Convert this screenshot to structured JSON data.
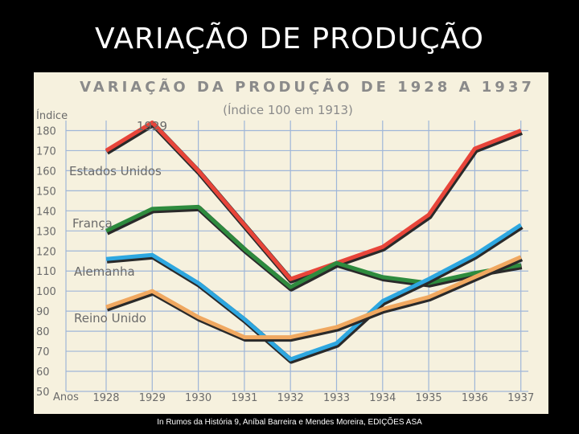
{
  "slide": {
    "title": "VARIAÇÃO DE PRODUÇÃO",
    "caption": "In Rumos da História 9, Aníbal Barreira e Mendes Moreira, EDIÇÕES ASA"
  },
  "chart_data": {
    "type": "line",
    "title": "VARIAÇÃO DA PRODUÇÃO DE 1928 A 1937",
    "subtitle": "(Índice 100 em 1913)",
    "ylabel": "Índice",
    "xlabel": "Anos",
    "ylim": [
      50,
      185
    ],
    "yticks": [
      50,
      60,
      70,
      80,
      90,
      100,
      110,
      120,
      130,
      140,
      150,
      160,
      170,
      180
    ],
    "categories": [
      "1928",
      "1929",
      "1930",
      "1931",
      "1932",
      "1933",
      "1934",
      "1935",
      "1936",
      "1937"
    ],
    "annotation": "1929",
    "grid": true,
    "legend": "inline labels",
    "series": [
      {
        "name": "Estados Unidos",
        "color": "#e8453a",
        "values": [
          170,
          184,
          160,
          133,
          106,
          114,
          122,
          138,
          171,
          180
        ]
      },
      {
        "name": "França",
        "color": "#2e8b3e",
        "values": [
          130,
          141,
          142,
          121,
          102,
          114,
          107,
          104,
          109,
          113
        ]
      },
      {
        "name": "Alemanha",
        "color": "#2ea7e0",
        "values": [
          116,
          118,
          104,
          86,
          66,
          74,
          95,
          106,
          118,
          133
        ]
      },
      {
        "name": "Reino Unido",
        "color": "#f0a860",
        "values": [
          92,
          100,
          87,
          77,
          77,
          82,
          91,
          97,
          107,
          117
        ]
      }
    ]
  }
}
